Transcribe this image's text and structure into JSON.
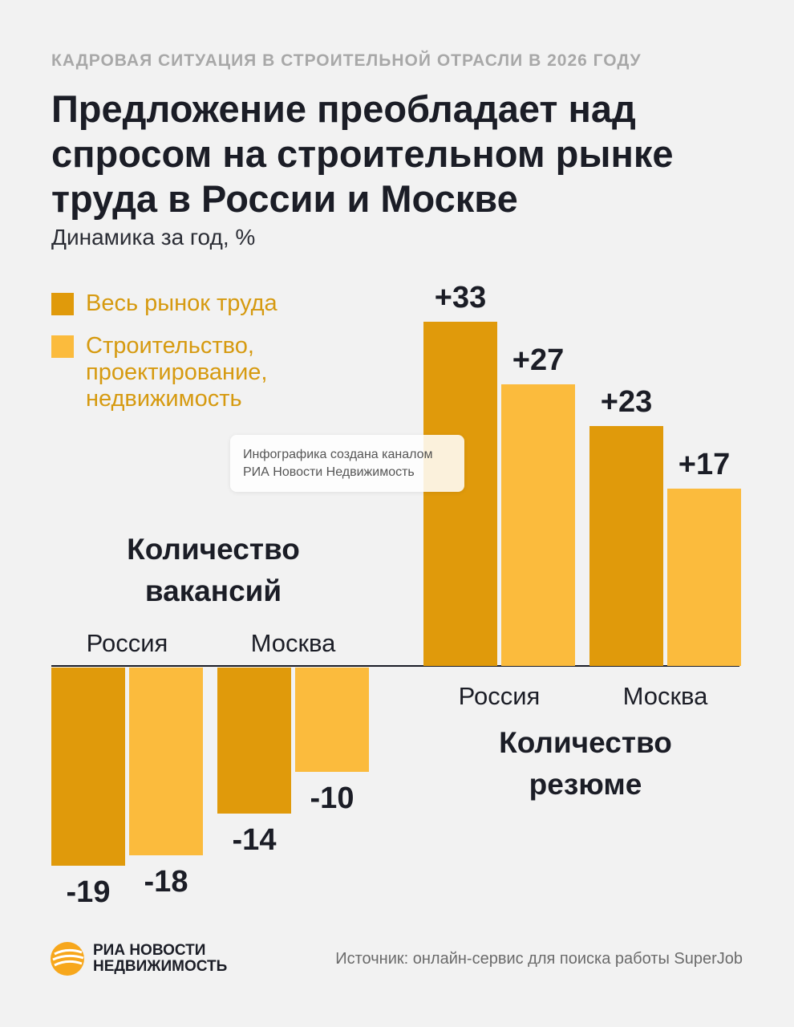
{
  "header": {
    "kicker": "КАДРОВАЯ СИТУАЦИЯ В СТРОИТЕЛЬНОЙ ОТРАСЛИ В 2026 ГОДУ",
    "title": "Предложение преобладает над спросом на строительном рынке труда в России и Москве",
    "subtitle": "Динамика за год, %"
  },
  "watermark": {
    "line1": "Инфографика создана каналом",
    "line2": "РИА Новости Недвижимость"
  },
  "colors": {
    "dark": "#e09a0b",
    "light": "#fbbb3d",
    "label_accent": "#d69a10"
  },
  "chart_data": [
    {
      "type": "bar",
      "title": "Количество вакансий",
      "categories": [
        "Россия",
        "Москва"
      ],
      "series": [
        {
          "name": "Весь рынок труда",
          "values": [
            -19,
            -14
          ],
          "labels": [
            "-19",
            "-14"
          ]
        },
        {
          "name": "Строительство, проектирование, недвижимость",
          "values": [
            -18,
            -10
          ],
          "labels": [
            "-18",
            "-10"
          ]
        }
      ]
    },
    {
      "type": "bar",
      "title": "Количество резюме",
      "categories": [
        "Россия",
        "Москва"
      ],
      "series": [
        {
          "name": "Весь рынок труда",
          "values": [
            33,
            23
          ],
          "labels": [
            "+33",
            "+23"
          ]
        },
        {
          "name": "Строительство, проектирование, недвижимость",
          "values": [
            27,
            17
          ],
          "labels": [
            "+27",
            "+17"
          ]
        }
      ]
    }
  ],
  "legend": [
    {
      "label": "Весь рынок труда",
      "icon": "dark-square"
    },
    {
      "label": "Строительство, проектирование, недвижимость",
      "icon": "light-square"
    }
  ],
  "footer": {
    "logo_line1": "РИА НОВОСТИ",
    "logo_line2": "НЕДВИЖИМОСТЬ",
    "source": "Источник: онлайн-сервис для поиска работы SuperJob"
  }
}
